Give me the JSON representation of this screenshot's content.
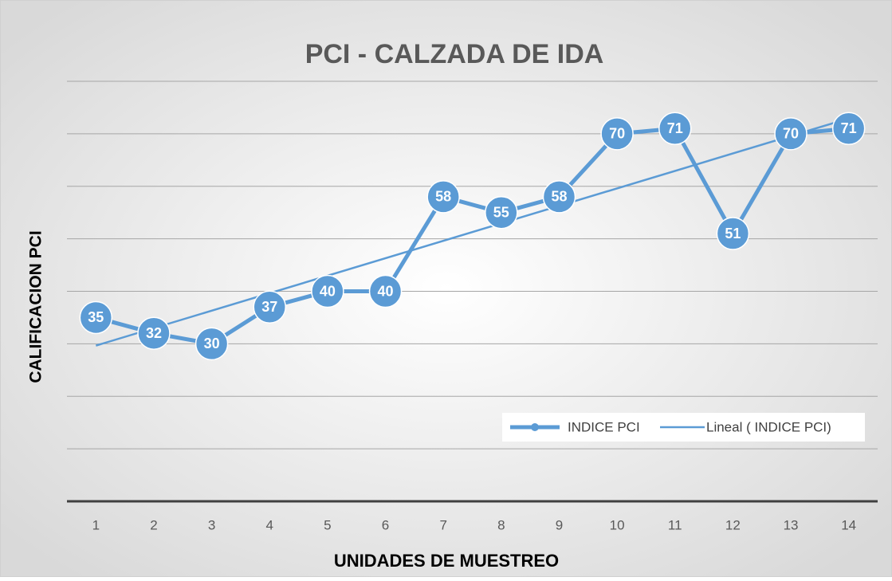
{
  "chart_data": {
    "type": "line",
    "title": "PCI - CALZADA DE IDA",
    "x_label": "UNIDADES DE MUESTREO",
    "y_label": "CALIFICACION PCI",
    "categories": [
      "1",
      "2",
      "3",
      "4",
      "5",
      "6",
      "7",
      "8",
      "9",
      "10",
      "11",
      "12",
      "13",
      "14"
    ],
    "series": [
      {
        "name": "INDICE PCI",
        "color": "#5b9bd5",
        "values": [
          35,
          32,
          30,
          37,
          40,
          40,
          58,
          55,
          58,
          70,
          71,
          51,
          70,
          71
        ]
      }
    ],
    "trendline": {
      "name": "Lineal ( INDICE PCI)",
      "type": "linear",
      "color": "#5b9bd5"
    },
    "ylim": [
      0,
      80
    ],
    "yticks": [
      0,
      10,
      20,
      30,
      40,
      50,
      60,
      70,
      80
    ],
    "grid": true,
    "legend": "lower right"
  }
}
